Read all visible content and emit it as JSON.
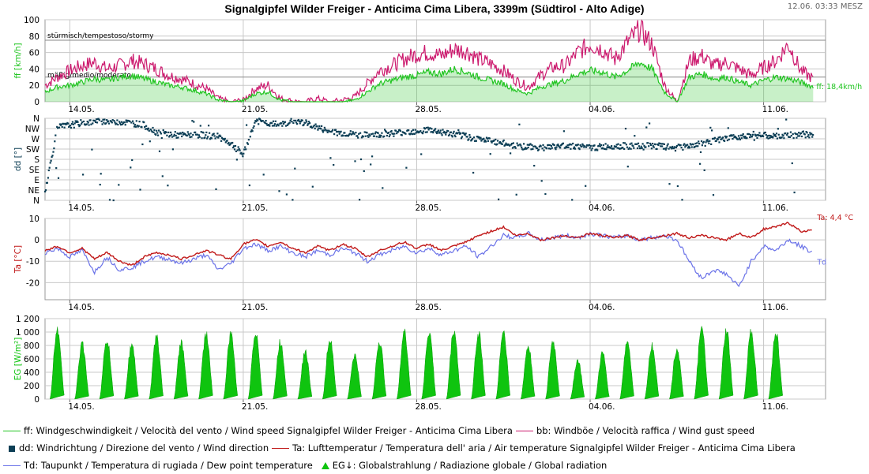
{
  "title": "Signalgipfel Wilder Freiger - Anticima Cima Libera, 3399m (Südtirol - Alto Adige)",
  "timestamp": "12.06. 03:33 MESZ",
  "colors": {
    "ff": "#22c522",
    "bb": "#cc1a6e",
    "dd": "#0c3e55",
    "ta": "#c01818",
    "td": "#6a72e8",
    "eg": "#0fc40f",
    "grid": "#c8c8c8"
  },
  "x_axis": {
    "ticks": [
      "14.05.",
      "21.05.",
      "28.05.",
      "04.06.",
      "11.06."
    ]
  },
  "chart_data": [
    {
      "type": "area",
      "panel": "wind_speed",
      "ylabel": "ff [km/h]",
      "ylim": [
        0,
        100
      ],
      "yticks": [
        0,
        20,
        40,
        60,
        80,
        100
      ],
      "annotations": [
        "stürmisch/tempestoso/stormy",
        "mäßig/medio/moderato"
      ],
      "current_label": "ff: 18,4km/h",
      "x_days": [
        0,
        0.5,
        1,
        1.5,
        2,
        2.5,
        3,
        3.5,
        4,
        4.5,
        5,
        5.5,
        6,
        6.5,
        7,
        7.5,
        8,
        8.5,
        9,
        9.5,
        10,
        10.5,
        11,
        11.5,
        12,
        12.5,
        13,
        13.5,
        14,
        14.5,
        15,
        15.5,
        16,
        16.5,
        17,
        17.5,
        18,
        18.5,
        19,
        19.5,
        20,
        20.5,
        21,
        21.5,
        22,
        22.5,
        23,
        23.5,
        24,
        24.5,
        25,
        25.5,
        26,
        26.5,
        27,
        27.5,
        28,
        28.5,
        29,
        29.5,
        30,
        30.5,
        31
      ],
      "series": [
        {
          "name": "ff: Windgeschwindigkeit / Velocità del vento / Wind speed  Signalgipfel Wilder Freiger - Anticima Cima Libera",
          "values": [
            12,
            18,
            20,
            24,
            28,
            26,
            30,
            32,
            28,
            24,
            20,
            18,
            14,
            10,
            2,
            0,
            1,
            10,
            12,
            2,
            0,
            0,
            0,
            0,
            0,
            2,
            12,
            22,
            26,
            30,
            32,
            36,
            34,
            40,
            36,
            30,
            26,
            22,
            14,
            10,
            18,
            22,
            26,
            34,
            38,
            36,
            30,
            38,
            48,
            40,
            12,
            0,
            30,
            34,
            28,
            30,
            24,
            20,
            26,
            30,
            28,
            24,
            18
          ]
        },
        {
          "name": "bb: Windböe / Velocità raffica / Wind gust speed",
          "values": [
            20,
            30,
            38,
            44,
            48,
            40,
            44,
            50,
            46,
            40,
            32,
            28,
            22,
            16,
            4,
            0,
            2,
            16,
            20,
            4,
            1,
            0,
            4,
            0,
            2,
            6,
            22,
            38,
            44,
            52,
            58,
            60,
            56,
            64,
            62,
            52,
            46,
            38,
            26,
            18,
            32,
            42,
            44,
            60,
            70,
            64,
            52,
            72,
            88,
            70,
            20,
            0,
            50,
            56,
            44,
            48,
            40,
            32,
            42,
            50,
            70,
            38,
            28
          ]
        }
      ]
    },
    {
      "type": "scatter",
      "panel": "wind_direction",
      "ylabel": "dd [°]",
      "categories": [
        "N",
        "NW",
        "W",
        "SW",
        "S",
        "SE",
        "E",
        "NE",
        "N"
      ],
      "x_days": [
        0,
        0.5,
        1,
        1.5,
        2,
        2.5,
        3,
        3.5,
        4,
        4.5,
        5,
        5.5,
        6,
        6.5,
        7,
        7.5,
        8,
        8.5,
        9,
        9.5,
        10,
        10.5,
        11,
        11.5,
        12,
        12.5,
        13,
        13.5,
        14,
        14.5,
        15,
        15.5,
        16,
        16.5,
        17,
        17.5,
        18,
        18.5,
        19,
        19.5,
        20,
        20.5,
        21,
        21.5,
        22,
        22.5,
        23,
        23.5,
        24,
        24.5,
        25,
        25.5,
        26,
        26.5,
        27,
        27.5,
        28,
        28.5,
        29,
        29.5,
        30,
        30.5,
        31
      ],
      "series": [
        {
          "name": "dd: Windrichtung / Direzione del vento / Wind direction",
          "values": [
            40,
            320,
            330,
            340,
            345,
            350,
            345,
            340,
            330,
            300,
            290,
            285,
            290,
            285,
            280,
            250,
            200,
            350,
            340,
            330,
            350,
            340,
            320,
            300,
            295,
            290,
            285,
            290,
            295,
            300,
            305,
            310,
            300,
            290,
            280,
            270,
            260,
            250,
            240,
            235,
            232,
            235,
            240,
            238,
            230,
            235,
            240,
            238,
            236,
            240,
            235,
            230,
            240,
            250,
            260,
            270,
            280,
            290,
            285,
            280,
            285,
            290,
            285
          ]
        }
      ]
    },
    {
      "type": "line",
      "panel": "temperature",
      "ylabel": "Ta [°C]",
      "ylim": [
        -28,
        10
      ],
      "yticks": [
        -20,
        -10,
        0,
        10
      ],
      "current_labels": {
        "ta": "Ta: 4,4 °C",
        "td": "Td"
      },
      "x_days": [
        0,
        0.5,
        1,
        1.5,
        2,
        2.5,
        3,
        3.5,
        4,
        4.5,
        5,
        5.5,
        6,
        6.5,
        7,
        7.5,
        8,
        8.5,
        9,
        9.5,
        10,
        10.5,
        11,
        11.5,
        12,
        12.5,
        13,
        13.5,
        14,
        14.5,
        15,
        15.5,
        16,
        16.5,
        17,
        17.5,
        18,
        18.5,
        19,
        19.5,
        20,
        20.5,
        21,
        21.5,
        22,
        22.5,
        23,
        23.5,
        24,
        24.5,
        25,
        25.5,
        26,
        26.5,
        27,
        27.5,
        28,
        28.5,
        29,
        29.5,
        30,
        30.5,
        31
      ],
      "series": [
        {
          "name": "Ta: Lufttemperatur / Temperatura dell' aria / Air temperature  Signalgipfel Wilder Freiger - Anticima Cima Libera",
          "values": [
            -5,
            -3,
            -6,
            -4,
            -9,
            -6,
            -10,
            -12,
            -8,
            -6,
            -7,
            -9,
            -7,
            -5,
            -7,
            -9,
            -2,
            0,
            -3,
            -1,
            -4,
            -6,
            -3,
            -5,
            -2,
            -4,
            -8,
            -5,
            -3,
            -1,
            -4,
            -2,
            -5,
            -3,
            -1,
            2,
            4,
            6,
            2,
            3,
            0,
            1,
            2,
            1,
            3,
            2,
            1,
            2,
            0,
            1,
            2,
            3,
            1,
            2,
            1,
            0,
            3,
            1,
            5,
            6,
            8,
            4,
            4.4
          ]
        },
        {
          "name": "Td: Taupunkt / Temperatura di rugiada / Dew point temperature",
          "values": [
            -6,
            -4,
            -8,
            -5,
            -15,
            -8,
            -14,
            -13,
            -10,
            -8,
            -9,
            -11,
            -9,
            -7,
            -14,
            -11,
            -4,
            -2,
            -5,
            -3,
            -6,
            -8,
            -5,
            -7,
            -4,
            -6,
            -10,
            -7,
            -5,
            -3,
            -6,
            -4,
            -7,
            -5,
            -3,
            -8,
            -3,
            2,
            1,
            3,
            0,
            1,
            2,
            1,
            3,
            2,
            1,
            2,
            0,
            1,
            2,
            0,
            -10,
            -18,
            -14,
            -16,
            -22,
            -10,
            -3,
            -5,
            0,
            -3,
            -6
          ]
        }
      ]
    },
    {
      "type": "area",
      "panel": "global_radiation",
      "ylabel": "EG [W/m²]",
      "ylim": [
        0,
        1200
      ],
      "yticks": [
        0,
        200,
        400,
        600,
        800,
        1000,
        1200
      ],
      "ytick_labels": [
        "0",
        "200",
        "400",
        "600",
        "800",
        "1 000",
        "1 200"
      ],
      "x_days": [
        0.5,
        1.5,
        2.5,
        3.5,
        4.5,
        5.5,
        6.5,
        7.5,
        8.5,
        9.5,
        10.5,
        11.5,
        12.5,
        13.5,
        14.5,
        15.5,
        16.5,
        17.5,
        18.5,
        19.5,
        20.5,
        21.5,
        22.5,
        23.5,
        24.5,
        25.5,
        26.5,
        27.5,
        28.5,
        29.5
      ],
      "series": [
        {
          "name": "EG↓: Globalstrahlung / Radiazione globale / Global radiation",
          "values": [
            1140,
            880,
            950,
            880,
            990,
            900,
            1050,
            1040,
            1090,
            910,
            760,
            980,
            700,
            920,
            1070,
            1070,
            1100,
            1060,
            1090,
            840,
            920,
            620,
            730,
            920,
            860,
            810,
            1110,
            1090,
            1090,
            1060
          ]
        }
      ]
    }
  ],
  "legend": [
    [
      {
        "key": "ff",
        "swatch": "line",
        "label": "ff: Windgeschwindigkeit / Velocità del vento / Wind speed  Signalgipfel Wilder Freiger - Anticima Cima Libera"
      },
      {
        "key": "bb",
        "swatch": "line",
        "label": "bb: Windböe / Velocità raffica / Wind gust speed"
      }
    ],
    [
      {
        "key": "dd",
        "swatch": "square",
        "label": "dd: Windrichtung / Direzione del vento / Wind direction"
      },
      {
        "key": "ta",
        "swatch": "line",
        "label": "Ta: Lufttemperatur / Temperatura dell' aria / Air temperature  Signalgipfel Wilder Freiger - Anticima Cima Libera"
      }
    ],
    [
      {
        "key": "td",
        "swatch": "line",
        "label": "Td: Taupunkt / Temperatura di rugiada / Dew point temperature"
      },
      {
        "key": "eg",
        "swatch": "triangle",
        "label": "EG↓: Globalstrahlung / Radiazione globale / Global radiation"
      }
    ]
  ]
}
